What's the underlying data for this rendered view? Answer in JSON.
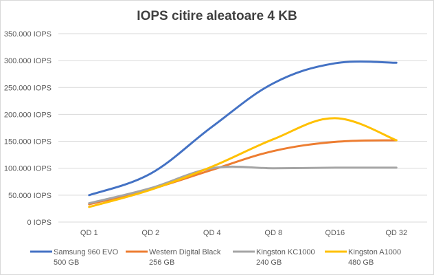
{
  "chart_data": {
    "type": "line",
    "title": "IOPS citire aleatoare 4 KB",
    "categories": [
      "QD 1",
      "QD 2",
      "QD 4",
      "QD 8",
      "QD16",
      "QD 32"
    ],
    "y_tick_labels": [
      "0 IOPS",
      "50.000 IOPS",
      "100.000 IOPS",
      "150.000 IOPS",
      "200.000 IOPS",
      "250.000 IOPS",
      "300.000 IOPS",
      "350.000 IOPS"
    ],
    "ylim": [
      0,
      350000
    ],
    "y_tick_step": 50000,
    "grid": true,
    "smooth": true,
    "legend_position": "bottom",
    "series": [
      {
        "name": [
          "Samsung 960 EVO",
          "500 GB"
        ],
        "color": "#4472c4",
        "values": [
          50000,
          90000,
          177000,
          258000,
          295000,
          296000
        ]
      },
      {
        "name": [
          "Western Digital Black",
          "256 GB"
        ],
        "color": "#ed7d31",
        "values": [
          33000,
          61000,
          97000,
          132000,
          149000,
          152000
        ]
      },
      {
        "name": [
          "Kingston KC1000",
          "240 GB"
        ],
        "color": "#a5a5a5",
        "values": [
          35000,
          63000,
          100000,
          100000,
          101000,
          101000
        ]
      },
      {
        "name": [
          "Kingston A1000",
          "480 GB"
        ],
        "color": "#ffc000",
        "values": [
          28000,
          60000,
          103000,
          154000,
          193000,
          152000
        ]
      }
    ]
  }
}
